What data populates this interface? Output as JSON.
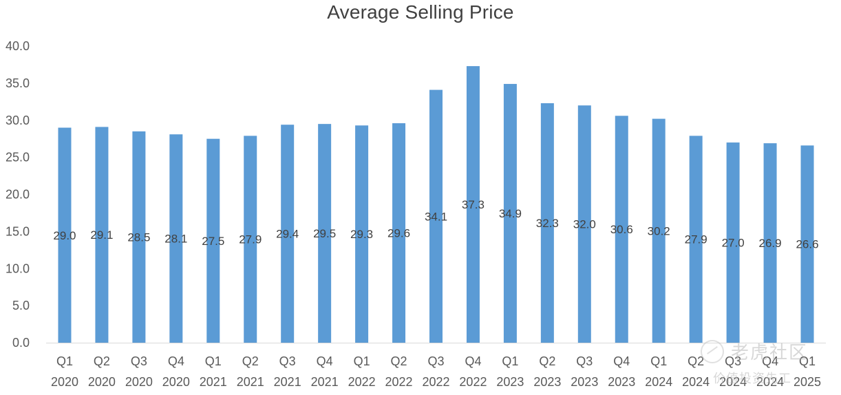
{
  "chart_data": {
    "type": "bar",
    "title": "Average Selling Price",
    "xlabel": "",
    "ylabel": "",
    "ylim": [
      0,
      40
    ],
    "yticks": [
      "0.0",
      "5.0",
      "10.0",
      "15.0",
      "20.0",
      "25.0",
      "30.0",
      "35.0",
      "40.0"
    ],
    "grid": false,
    "bar_color": "#5B9BD5",
    "categories": [
      [
        "Q1",
        "2020"
      ],
      [
        "Q2",
        "2020"
      ],
      [
        "Q3",
        "2020"
      ],
      [
        "Q4",
        "2020"
      ],
      [
        "Q1",
        "2021"
      ],
      [
        "Q2",
        "2021"
      ],
      [
        "Q3",
        "2021"
      ],
      [
        "Q4",
        "2021"
      ],
      [
        "Q1",
        "2022"
      ],
      [
        "Q2",
        "2022"
      ],
      [
        "Q3",
        "2022"
      ],
      [
        "Q4",
        "2022"
      ],
      [
        "Q1",
        "2023"
      ],
      [
        "Q2",
        "2023"
      ],
      [
        "Q3",
        "2023"
      ],
      [
        "Q4",
        "2023"
      ],
      [
        "Q1",
        "2024"
      ],
      [
        "Q2",
        "2024"
      ],
      [
        "Q3",
        "2024"
      ],
      [
        "Q4",
        "2024"
      ],
      [
        "Q1",
        "2025"
      ]
    ],
    "values": [
      29.0,
      29.1,
      28.5,
      28.1,
      27.5,
      27.9,
      29.4,
      29.5,
      29.3,
      29.6,
      34.1,
      37.3,
      34.9,
      32.3,
      32.0,
      30.6,
      30.2,
      27.9,
      27.0,
      26.9,
      26.6
    ],
    "data_labels": [
      "29.0",
      "29.1",
      "28.5",
      "28.1",
      "27.5",
      "27.9",
      "29.4",
      "29.5",
      "29.3",
      "29.6",
      "34.1",
      "37.3",
      "34.9",
      "32.3",
      "32.0",
      "30.6",
      "30.2",
      "27.9",
      "27.0",
      "26.9",
      "26.6"
    ]
  },
  "watermark": {
    "brand": "老虎社区",
    "slogan": "价值投资先工"
  }
}
